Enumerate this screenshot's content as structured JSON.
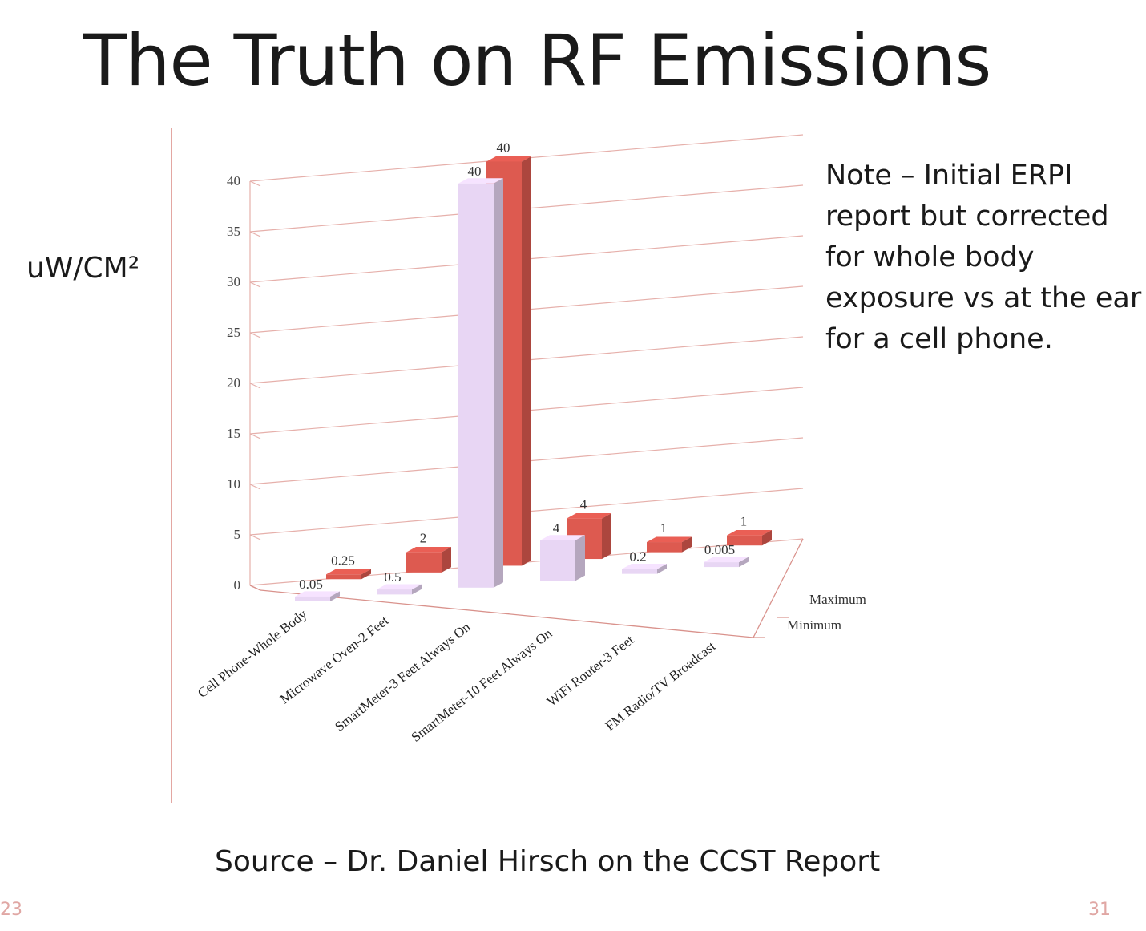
{
  "slide": {
    "title": "The Truth on RF Emissions",
    "unit_label": "uW/CM²",
    "note": "Note – Initial ERPI report but corrected for whole body exposure vs at the ear for a cell phone.",
    "source": "Source – Dr. Daniel Hirsch on the CCST Report",
    "page_left": "23",
    "page_right": "31"
  },
  "chart_data": {
    "type": "bar",
    "style": "3d-clustered",
    "categories": [
      "Cell Phone-Whole Body",
      "Microwave Oven-2 Feet",
      "SmartMeter-3 Feet Always On",
      "SmartMeter-10 Feet Always On",
      "WiFi Router-3 Feet",
      "FM Radio/TV Broadcast"
    ],
    "series": [
      {
        "name": "Minimum",
        "values": [
          0.05,
          0.5,
          40,
          4,
          0.2,
          0.005
        ],
        "labels": [
          "0.05",
          "0.5",
          "40",
          "4",
          "0.2",
          "0.005"
        ],
        "color": "#e8d6f4"
      },
      {
        "name": "Maximum",
        "values": [
          0.25,
          2,
          40,
          4,
          1,
          1
        ],
        "labels": [
          "0.25",
          "2",
          "40",
          "4",
          "1",
          "1"
        ],
        "color": "#dd5a50"
      }
    ],
    "y_ticks": [
      "0",
      "5",
      "10",
      "15",
      "20",
      "25",
      "30",
      "35",
      "40"
    ],
    "ylim": [
      0,
      40
    ],
    "grid": true,
    "legend": [
      "Maximum",
      "Minimum"
    ],
    "colors": {
      "grid": "#e6b0ab",
      "axis": "#d9928c"
    }
  }
}
